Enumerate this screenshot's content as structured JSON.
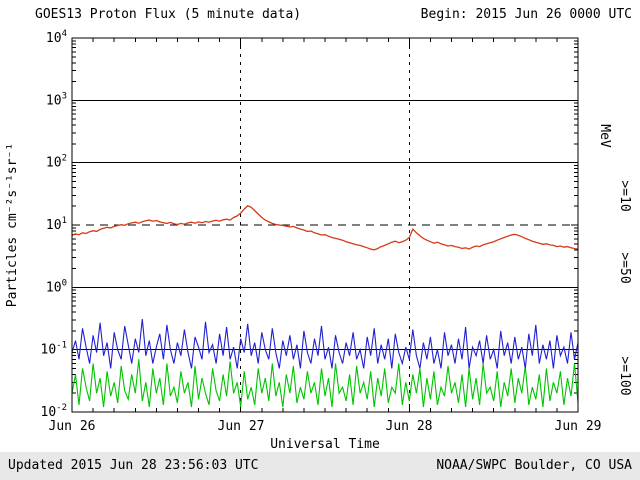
{
  "header": {
    "title": "GOES13 Proton Flux (5 minute data)",
    "begin_label": "Begin: 2015 Jun 26 0000 UTC"
  },
  "footer": {
    "updated": "Updated 2015 Jun 28 23:56:03 UTC",
    "credit": "NOAA/SWPC Boulder, CO USA"
  },
  "axes": {
    "ylabel": "Particles cm⁻²s⁻¹sr⁻¹",
    "xlabel": "Universal Time",
    "right_label": "MeV"
  },
  "chart_data": {
    "type": "line",
    "title": "GOES13 Proton Flux (5 minute data)",
    "xlabel": "Universal Time",
    "ylabel": "Particles cm-2 s-1 sr-1",
    "y_scale": "log",
    "y_range": [
      0.01,
      10000
    ],
    "y_tick_exponents": [
      4,
      3,
      2,
      1,
      0,
      -1,
      -2
    ],
    "x_range": [
      0,
      72
    ],
    "x_ticks": [
      {
        "t": 0,
        "label": "Jun 26"
      },
      {
        "t": 24,
        "label": "Jun 27"
      },
      {
        "t": 48,
        "label": "Jun 28"
      },
      {
        "t": 72,
        "label": "Jun 29"
      }
    ],
    "day_boundary_lines": [
      24,
      48
    ],
    "threshold_line": 10,
    "legend_unit": "MeV",
    "sample_interval_hours": 0.5,
    "series": [
      {
        "name": ">=10",
        "color": "#d63a17",
        "values": [
          6.8,
          7.2,
          7.0,
          7.5,
          7.3,
          7.8,
          8.1,
          7.9,
          8.5,
          8.9,
          9.2,
          9.0,
          9.5,
          9.8,
          10.1,
          9.9,
          10.5,
          10.8,
          11.1,
          10.7,
          11.3,
          11.7,
          12.0,
          11.5,
          11.8,
          11.2,
          10.9,
          10.6,
          11.0,
          10.5,
          10.2,
          10.6,
          10.3,
          10.8,
          11.1,
          10.7,
          11.2,
          10.9,
          11.4,
          11.1,
          11.6,
          11.9,
          11.5,
          12.1,
          12.4,
          12.0,
          13.2,
          14.0,
          15.5,
          18.0,
          20.3,
          19.2,
          17.0,
          15.0,
          13.2,
          12.0,
          11.2,
          10.6,
          10.2,
          10.0,
          9.8,
          9.6,
          9.3,
          9.5,
          9.0,
          8.6,
          8.3,
          7.9,
          8.0,
          7.5,
          7.2,
          6.9,
          7.0,
          6.6,
          6.3,
          6.1,
          5.9,
          5.7,
          5.4,
          5.2,
          5.0,
          4.8,
          4.7,
          4.5,
          4.3,
          4.1,
          4.0,
          4.2,
          4.5,
          4.7,
          5.0,
          5.3,
          5.5,
          5.2,
          5.4,
          5.7,
          6.3,
          8.6,
          7.5,
          6.7,
          6.1,
          5.7,
          5.4,
          5.1,
          5.3,
          5.0,
          4.8,
          4.6,
          4.7,
          4.5,
          4.4,
          4.2,
          4.3,
          4.1,
          4.4,
          4.6,
          4.5,
          4.8,
          5.0,
          5.2,
          5.4,
          5.7,
          6.0,
          6.3,
          6.6,
          6.9,
          7.1,
          6.8,
          6.5,
          6.1,
          5.8,
          5.5,
          5.3,
          5.1,
          4.9,
          5.0,
          4.8,
          4.7,
          4.5,
          4.6,
          4.4,
          4.5,
          4.3,
          4.2,
          4.1
        ]
      },
      {
        "name": ">=50",
        "color": "#2020d0",
        "values": [
          0.09,
          0.14,
          0.07,
          0.22,
          0.11,
          0.06,
          0.17,
          0.09,
          0.27,
          0.08,
          0.13,
          0.05,
          0.19,
          0.1,
          0.07,
          0.24,
          0.12,
          0.06,
          0.15,
          0.09,
          0.31,
          0.08,
          0.14,
          0.06,
          0.11,
          0.18,
          0.07,
          0.25,
          0.1,
          0.06,
          0.13,
          0.08,
          0.21,
          0.09,
          0.05,
          0.16,
          0.11,
          0.07,
          0.28,
          0.09,
          0.12,
          0.06,
          0.18,
          0.08,
          0.23,
          0.07,
          0.11,
          0.05,
          0.15,
          0.09,
          0.26,
          0.08,
          0.13,
          0.06,
          0.19,
          0.1,
          0.07,
          0.22,
          0.09,
          0.05,
          0.14,
          0.08,
          0.17,
          0.07,
          0.12,
          0.05,
          0.2,
          0.09,
          0.06,
          0.15,
          0.08,
          0.24,
          0.07,
          0.11,
          0.05,
          0.17,
          0.09,
          0.06,
          0.13,
          0.08,
          0.19,
          0.07,
          0.1,
          0.05,
          0.16,
          0.08,
          0.22,
          0.06,
          0.12,
          0.07,
          0.15,
          0.05,
          0.18,
          0.09,
          0.06,
          0.11,
          0.07,
          0.21,
          0.08,
          0.05,
          0.13,
          0.07,
          0.16,
          0.06,
          0.1,
          0.05,
          0.19,
          0.08,
          0.12,
          0.06,
          0.15,
          0.07,
          0.23,
          0.05,
          0.11,
          0.08,
          0.14,
          0.06,
          0.17,
          0.07,
          0.1,
          0.05,
          0.2,
          0.08,
          0.13,
          0.06,
          0.16,
          0.07,
          0.11,
          0.05,
          0.18,
          0.08,
          0.25,
          0.06,
          0.12,
          0.07,
          0.14,
          0.05,
          0.17,
          0.08,
          0.11,
          0.06,
          0.19,
          0.07,
          0.13
        ]
      },
      {
        "name": ">=100",
        "color": "#00c400",
        "values": [
          0.02,
          0.04,
          0.013,
          0.05,
          0.025,
          0.015,
          0.06,
          0.02,
          0.035,
          0.012,
          0.045,
          0.018,
          0.03,
          0.014,
          0.055,
          0.022,
          0.016,
          0.04,
          0.02,
          0.07,
          0.015,
          0.03,
          0.012,
          0.05,
          0.02,
          0.035,
          0.013,
          0.06,
          0.018,
          0.025,
          0.014,
          0.045,
          0.02,
          0.03,
          0.012,
          0.055,
          0.016,
          0.035,
          0.02,
          0.013,
          0.05,
          0.022,
          0.015,
          0.04,
          0.018,
          0.065,
          0.02,
          0.03,
          0.012,
          0.045,
          0.016,
          0.025,
          0.013,
          0.05,
          0.02,
          0.035,
          0.015,
          0.06,
          0.018,
          0.03,
          0.012,
          0.04,
          0.02,
          0.055,
          0.014,
          0.025,
          0.016,
          0.045,
          0.02,
          0.03,
          0.013,
          0.05,
          0.018,
          0.035,
          0.012,
          0.06,
          0.02,
          0.025,
          0.015,
          0.04,
          0.013,
          0.055,
          0.02,
          0.03,
          0.016,
          0.045,
          0.012,
          0.035,
          0.018,
          0.05,
          0.014,
          0.025,
          0.02,
          0.06,
          0.013,
          0.03,
          0.015,
          0.04,
          0.02,
          0.05,
          0.012,
          0.035,
          0.016,
          0.045,
          0.013,
          0.025,
          0.018,
          0.055,
          0.02,
          0.03,
          0.014,
          0.04,
          0.012,
          0.05,
          0.016,
          0.035,
          0.013,
          0.06,
          0.02,
          0.025,
          0.015,
          0.045,
          0.012,
          0.03,
          0.018,
          0.05,
          0.014,
          0.035,
          0.02,
          0.055,
          0.013,
          0.025,
          0.016,
          0.04,
          0.012,
          0.05,
          0.015,
          0.03,
          0.02,
          0.045,
          0.013,
          0.035,
          0.018,
          0.06,
          0.014
        ]
      }
    ]
  }
}
